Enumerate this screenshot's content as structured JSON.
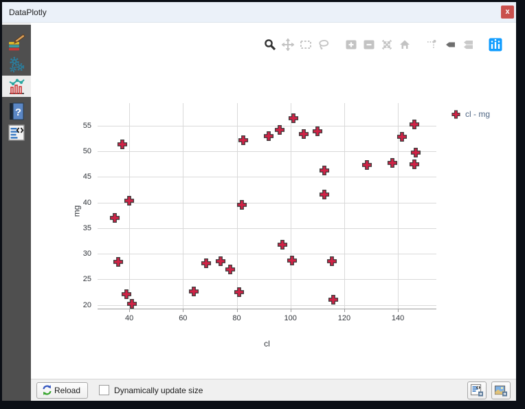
{
  "window": {
    "title": "DataPlotly",
    "close_glyph": "x"
  },
  "sidebar": {
    "tabs": [
      {
        "name": "plot-properties",
        "icon": "paintbrush-layers-icon",
        "active": false
      },
      {
        "name": "plot-settings",
        "icon": "gears-icon",
        "active": false
      },
      {
        "name": "plot-view",
        "icon": "chart-icon",
        "active": true
      },
      {
        "name": "help",
        "icon": "help-book-icon",
        "active": false
      },
      {
        "name": "code",
        "icon": "code-document-icon",
        "active": false
      }
    ]
  },
  "plot_toolbar": {
    "icons": [
      "zoom",
      "pan",
      "box-select",
      "lasso-select",
      "zoom-in",
      "zoom-out",
      "autoscale",
      "reset-axes",
      "toggle-spikelines",
      "hover-closest",
      "hover-compare",
      "plotly-logo"
    ],
    "active_icons": [
      "zoom",
      "hover-closest"
    ],
    "logo_color": "#119dff"
  },
  "chart_data": {
    "type": "scatter",
    "xlabel": "cl",
    "ylabel": "mg",
    "legend": {
      "label": "cl - mg",
      "position": "right"
    },
    "grid": true,
    "x_ticks": [
      40,
      60,
      80,
      100,
      120,
      140
    ],
    "y_ticks": [
      20,
      25,
      30,
      35,
      40,
      45,
      50,
      55
    ],
    "x_range": [
      28.2,
      154.3
    ],
    "y_range": [
      19.3,
      59.4
    ],
    "marker": {
      "symbol": "cross",
      "fill": "#d22246",
      "stroke": "#3b3b3b",
      "size": 15
    },
    "series": [
      {
        "name": "cl - mg",
        "x": [
          37.4,
          40,
          34.5,
          36,
          39,
          41,
          64,
          68.5,
          74,
          77.5,
          81,
          82,
          82.5,
          92,
          96,
          97,
          101,
          100.5,
          105,
          110,
          112.5,
          112.5,
          115.5,
          116,
          128.5,
          138,
          141.5,
          146,
          146.5,
          146
        ],
        "y": [
          51.4,
          40.4,
          37,
          28.4,
          22.1,
          20.3,
          22.7,
          28.1,
          28.6,
          27,
          22.5,
          39.5,
          52.2,
          53,
          54.2,
          31.8,
          56.5,
          28.7,
          53.4,
          53.9,
          46.2,
          41.6,
          28.5,
          21.1,
          47.3,
          47.7,
          52.8,
          55.3,
          49.8,
          47.4
        ]
      }
    ],
    "grid_color": "#d9d9d9",
    "tick_color": "#30343a"
  },
  "footer": {
    "reload_label": "Reload",
    "dynamic_size_label": "Dynamically update size",
    "dynamic_size_checked": false,
    "export_icons": [
      "save-as-html",
      "save-as-image"
    ]
  }
}
